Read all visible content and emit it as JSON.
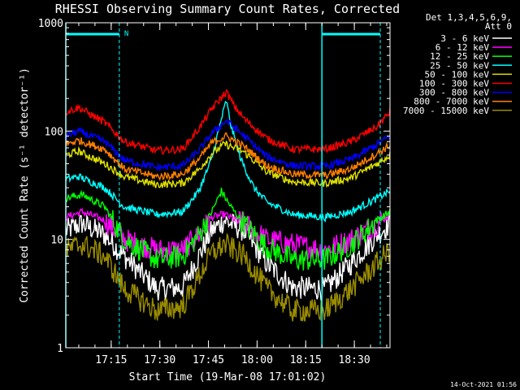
{
  "chart_data": {
    "type": "line",
    "title": "RHESSI Observing Summary Count Rates, Corrected",
    "xlabel": "Start Time (19-Mar-08 17:01:02)",
    "ylabel": "Corrected Count Rate (s⁻¹ detector⁻¹)",
    "yscale": "log",
    "ylim": [
      1,
      1000
    ],
    "xlim_minutes": [
      0,
      100
    ],
    "x_ticks": [
      {
        "label": "17:15",
        "minutes": 14
      },
      {
        "label": "17:30",
        "minutes": 29
      },
      {
        "label": "17:45",
        "minutes": 44
      },
      {
        "label": "18:00",
        "minutes": 59
      },
      {
        "label": "18:15",
        "minutes": 74
      },
      {
        "label": "18:30",
        "minutes": 89
      }
    ],
    "y_ticks": [
      {
        "label": "1",
        "value": 1
      },
      {
        "label": "10",
        "value": 10
      },
      {
        "label": "100",
        "value": 100
      },
      {
        "label": "1000",
        "value": 1000
      }
    ],
    "legend_header": [
      "Det 1,3,4,5,6,9,",
      "Att 0"
    ],
    "legend_position": "right-outside",
    "annotation_flag": "N",
    "flag_color": "#00ffff",
    "night_intervals_minutes": [
      [
        0,
        16.5
      ],
      [
        79,
        97
      ]
    ],
    "series": [
      {
        "name": "3 - 6 keV",
        "color": "#ffffff",
        "x": [
          0,
          5,
          12,
          18,
          28,
          36,
          41,
          45,
          49,
          55,
          62,
          70,
          80,
          88,
          96,
          100
        ],
        "y": [
          12,
          14,
          11,
          7,
          3.5,
          3.6,
          7,
          12,
          15,
          12,
          6,
          3.6,
          3.5,
          6,
          11,
          14
        ]
      },
      {
        "name": "6 - 12 keV",
        "color": "#ff00ff",
        "x": [
          0,
          5,
          12,
          18,
          28,
          36,
          41,
          45,
          49,
          55,
          62,
          70,
          80,
          88,
          96,
          100
        ],
        "y": [
          16,
          18,
          15,
          10,
          8,
          8,
          11,
          16,
          17,
          14,
          10,
          9,
          8,
          10,
          14,
          17
        ]
      },
      {
        "name": "12 - 25 keV",
        "color": "#00ff00",
        "x": [
          0,
          5,
          12,
          18,
          28,
          36,
          41,
          45,
          48,
          50,
          52,
          55,
          62,
          70,
          80,
          88,
          96,
          100
        ],
        "y": [
          24,
          26,
          20,
          10,
          6.5,
          7,
          11,
          18,
          28,
          22,
          18,
          14,
          8.5,
          6.5,
          6.5,
          9,
          15,
          18
        ]
      },
      {
        "name": "25 - 50 keV",
        "color": "#00ffff",
        "x": [
          0,
          4,
          12,
          18,
          28,
          36,
          41,
          45,
          48,
          49.5,
          51,
          54,
          58,
          62,
          70,
          80,
          88,
          96,
          100
        ],
        "y": [
          36,
          38,
          30,
          20,
          17,
          18,
          28,
          55,
          130,
          190,
          110,
          55,
          30,
          22,
          17,
          16,
          18,
          24,
          28
        ]
      },
      {
        "name": "50 - 100 keV",
        "color": "#e0e000",
        "x": [
          0,
          4,
          12,
          18,
          28,
          36,
          41,
          45,
          49,
          55,
          62,
          70,
          80,
          88,
          96,
          100
        ],
        "y": [
          60,
          65,
          50,
          38,
          32,
          33,
          44,
          62,
          76,
          64,
          42,
          34,
          33,
          37,
          50,
          60
        ]
      },
      {
        "name": "100 - 300 keV",
        "color": "#ff0000",
        "x": [
          0,
          4,
          12,
          18,
          28,
          36,
          41,
          45,
          49.5,
          52,
          55,
          62,
          70,
          80,
          88,
          96,
          100
        ],
        "y": [
          150,
          165,
          120,
          80,
          66,
          68,
          105,
          160,
          230,
          170,
          130,
          85,
          68,
          68,
          80,
          110,
          150
        ]
      },
      {
        "name": "300 - 800 keV",
        "color": "#0000ff",
        "x": [
          0,
          4,
          12,
          18,
          28,
          36,
          41,
          45,
          49.5,
          55,
          62,
          70,
          80,
          88,
          96,
          100
        ],
        "y": [
          90,
          100,
          80,
          54,
          46,
          48,
          66,
          95,
          125,
          90,
          58,
          48,
          47,
          55,
          75,
          90
        ]
      },
      {
        "name": "800 - 7000 keV",
        "color": "#ff7f00",
        "x": [
          0,
          4,
          12,
          18,
          28,
          36,
          41,
          45,
          49.5,
          55,
          62,
          70,
          80,
          88,
          96,
          100
        ],
        "y": [
          76,
          82,
          68,
          45,
          38,
          40,
          55,
          78,
          90,
          72,
          48,
          40,
          39,
          45,
          62,
          74
        ]
      },
      {
        "name": "7000 - 15000 keV",
        "color": "#9a8c00",
        "x": [
          0,
          5,
          12,
          18,
          28,
          36,
          41,
          45,
          49,
          55,
          62,
          70,
          80,
          88,
          96,
          100
        ],
        "y": [
          8,
          9,
          7,
          3.5,
          2.2,
          2.4,
          4.5,
          7.5,
          9,
          7,
          3.5,
          2.2,
          2.2,
          3.5,
          6,
          8
        ]
      }
    ]
  },
  "timestamp": "14-Oct-2021 01:56"
}
